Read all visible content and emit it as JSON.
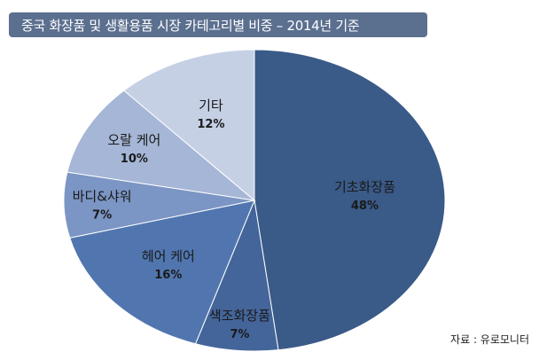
{
  "header": {
    "title": "중국 화장품 및 생활용품 시장 카테고리별 비중 – 2014년 기준"
  },
  "footer": {
    "source": "자료 : 유로모니터"
  },
  "colors": {
    "title_bg": "#5b6f8f",
    "slice_border": "#ffffff"
  },
  "chart_data": {
    "type": "pie",
    "title": "중국 화장품 및 생활용품 시장 카테고리별 비중 – 2014년 기준",
    "start": "12 o'clock",
    "direction": "clockwise",
    "slices": [
      {
        "label": "기초화장품",
        "value": 48,
        "display": "48%",
        "color": "#3a5a88"
      },
      {
        "label": "색조화장품",
        "value": 7,
        "display": "7%",
        "color": "#44659a"
      },
      {
        "label": "헤어 케어",
        "value": 16,
        "display": "16%",
        "color": "#5176af"
      },
      {
        "label": "바디&샤워",
        "value": 7,
        "display": "7%",
        "color": "#7b95c4"
      },
      {
        "label": "오랄 케어",
        "value": 10,
        "display": "10%",
        "color": "#a5b6d6"
      },
      {
        "label": "기타",
        "value": 12,
        "display": "12%",
        "color": "#c5d0e5"
      }
    ]
  }
}
